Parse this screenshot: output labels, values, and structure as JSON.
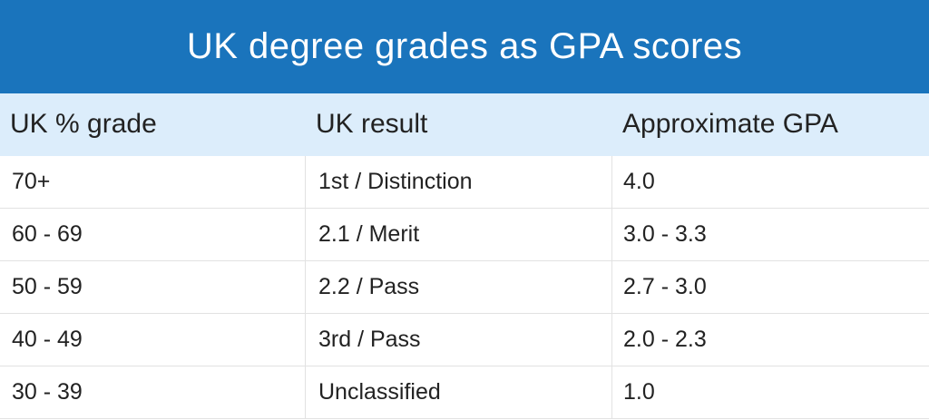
{
  "header": {
    "title": "UK degree grades as GPA scores"
  },
  "table": {
    "columns": [
      "UK % grade",
      "UK result",
      "Approximate GPA"
    ],
    "rows": [
      [
        "70+",
        "1st / Distinction",
        "4.0"
      ],
      [
        "60 - 69",
        "2.1 / Merit",
        "3.0 - 3.3"
      ],
      [
        "50 - 59",
        "2.2 / Pass",
        "2.7 - 3.0"
      ],
      [
        "40 - 49",
        "3rd / Pass",
        "2.0 - 2.3"
      ],
      [
        "30 - 39",
        "Unclassified",
        "1.0"
      ]
    ]
  }
}
